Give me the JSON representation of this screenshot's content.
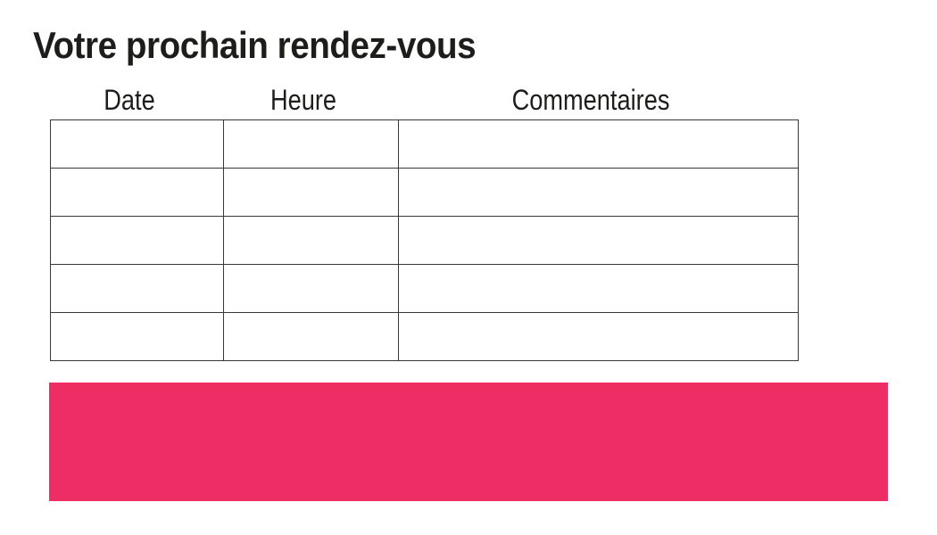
{
  "page": {
    "title": "Votre prochain rendez-vous"
  },
  "table": {
    "columns": [
      {
        "key": "date",
        "label": "Date"
      },
      {
        "key": "heure",
        "label": "Heure"
      },
      {
        "key": "commentaires",
        "label": "Commentaires"
      }
    ],
    "rows": [
      [
        "",
        "",
        ""
      ],
      [
        "",
        "",
        ""
      ],
      [
        "",
        "",
        ""
      ],
      [
        "",
        "",
        ""
      ],
      [
        "",
        "",
        ""
      ]
    ]
  },
  "colors": {
    "accent_pink": "#EE2D64",
    "table_border": "#383838",
    "text": "#1D1D1B"
  }
}
